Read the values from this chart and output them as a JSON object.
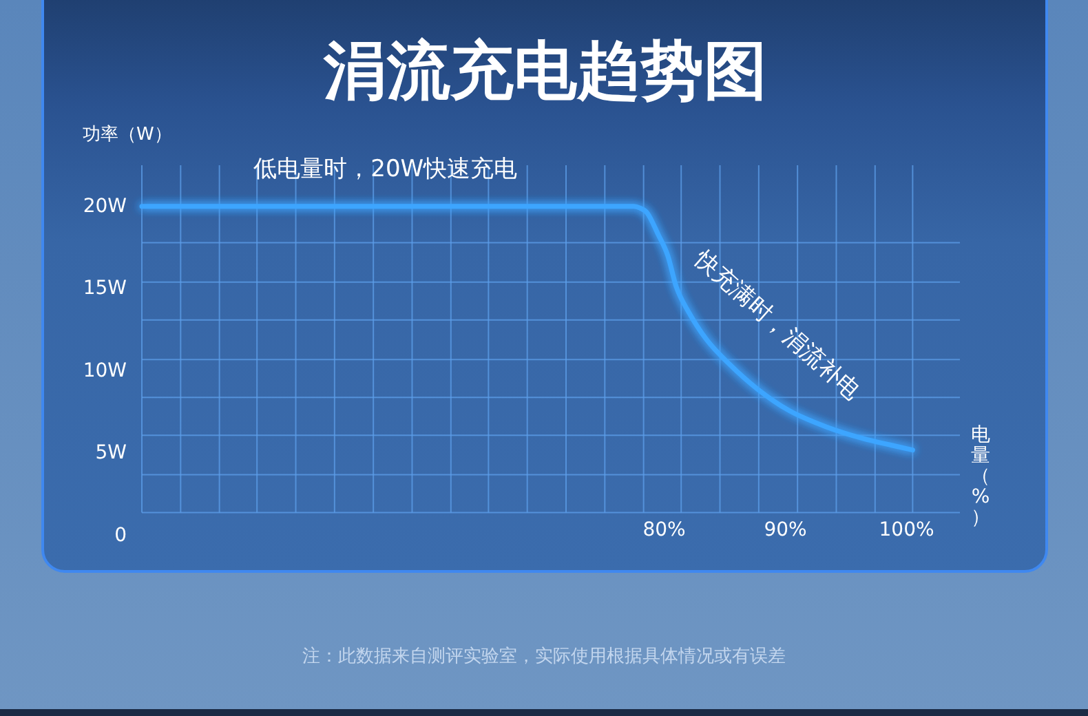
{
  "chart_data": {
    "type": "line",
    "title": "涓流充电趋势图",
    "xlabel": "电量（%）",
    "ylabel": "功率（W）",
    "x": [
      36.9,
      77.5,
      78.0,
      78.6,
      79.5,
      80.3,
      81.0,
      82.0,
      83.5,
      85.4,
      87.7,
      90.3,
      93.4,
      96.4,
      98.7,
      100.5
    ],
    "values": [
      20,
      20,
      19.9,
      19.6,
      18.3,
      17.0,
      15.1,
      13.6,
      11.9,
      10.4,
      8.9,
      7.6,
      6.6,
      5.9,
      5.5,
      5.2
    ],
    "color": "#3da5ff",
    "xlim": [
      36.9,
      104.4
    ],
    "ylim": [
      0,
      22.5
    ],
    "xticks": [
      {
        "value": 36.9,
        "label": null
      },
      {
        "value": 40.1,
        "label": null
      },
      {
        "value": 43.3,
        "label": null
      },
      {
        "value": 46.4,
        "label": null
      },
      {
        "value": 49.6,
        "label": null
      },
      {
        "value": 52.8,
        "label": null
      },
      {
        "value": 56.0,
        "label": null
      },
      {
        "value": 59.2,
        "label": null
      },
      {
        "value": 62.4,
        "label": null
      },
      {
        "value": 65.5,
        "label": null
      },
      {
        "value": 68.7,
        "label": null
      },
      {
        "value": 71.9,
        "label": null
      },
      {
        "value": 75.1,
        "label": null
      },
      {
        "value": 78.3,
        "label": null
      },
      {
        "value": 80,
        "label": "80%"
      },
      {
        "value": 81.4,
        "label": null
      },
      {
        "value": 84.6,
        "label": null
      },
      {
        "value": 87.8,
        "label": null
      },
      {
        "value": 90,
        "label": "90%"
      },
      {
        "value": 91.0,
        "label": null
      },
      {
        "value": 94.2,
        "label": null
      },
      {
        "value": 97.4,
        "label": null
      },
      {
        "value": 100,
        "label": "100%"
      },
      {
        "value": 100.5,
        "label": null
      }
    ],
    "yticks": [
      0,
      {
        "value": 1.4,
        "label": null
      },
      {
        "value": 3.7,
        "label": null
      },
      {
        "value": 5,
        "label": "5W"
      },
      {
        "value": 6.1,
        "label": null
      },
      {
        "value": 8.4,
        "label": null
      },
      {
        "value": 10,
        "label": "10W"
      },
      {
        "value": 10.7,
        "label": null
      },
      {
        "value": 13.1,
        "label": null
      },
      {
        "value": 15,
        "label": "15W"
      },
      {
        "value": 15.4,
        "label": null
      },
      {
        "value": 17.8,
        "label": null
      },
      {
        "value": 20,
        "label": "20W"
      }
    ],
    "grid": true,
    "annotations": [
      {
        "text": "低电量时，20W快速充电",
        "x": 57,
        "y": 20
      },
      {
        "text": "快充满时，涓流补电",
        "x": 86,
        "y": 10
      },
      "注：此数据来自测评实验室，实际使用根据具体情况或有误差"
    ]
  }
}
